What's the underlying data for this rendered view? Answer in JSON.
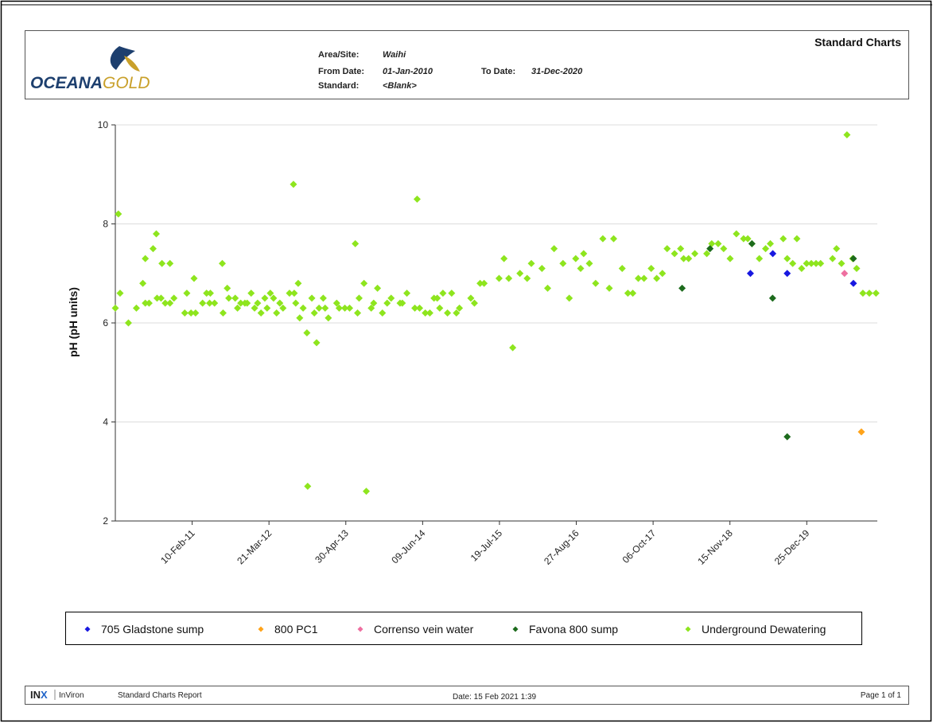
{
  "header": {
    "logo": [
      "OCEANA",
      "GOLD"
    ],
    "title": "Standard Charts",
    "fields": [
      {
        "label": "Area/Site:",
        "value": "Waihi"
      },
      {
        "label": "From Date:",
        "value": "01-Jan-2010"
      },
      {
        "label": "To Date:",
        "value": "31-Dec-2020"
      },
      {
        "label": "Standard:",
        "value": "<Blank>"
      }
    ]
  },
  "chart_data": {
    "type": "scatter",
    "y_label": "pH (pH units)",
    "xlim": [
      "2010-01-01",
      "2020-12-31"
    ],
    "xticks": [
      {
        "value": "2011-02-10",
        "label": "10-Feb-11"
      },
      {
        "value": "2012-03-21",
        "label": "21-Mar-12"
      },
      {
        "value": "2013-04-30",
        "label": "30-Apr-13"
      },
      {
        "value": "2014-06-09",
        "label": "09-Jun-14"
      },
      {
        "value": "2015-07-19",
        "label": "19-Jul-15"
      },
      {
        "value": "2016-08-27",
        "label": "27-Aug-16"
      },
      {
        "value": "2017-10-06",
        "label": "06-Oct-17"
      },
      {
        "value": "2018-11-15",
        "label": "15-Nov-18"
      },
      {
        "value": "2019-12-25",
        "label": "25-Dec-19"
      }
    ],
    "ylim": [
      2,
      10
    ],
    "yticks": [
      2,
      4,
      6,
      8,
      10
    ],
    "grid": true,
    "series": [
      {
        "name": "705 Gladstone sump",
        "color": "#1818e0",
        "x": [
          "2019-03-03",
          "2019-06-29",
          "2019-09-13",
          "2020-08-27"
        ],
        "values": [
          7.0,
          7.4,
          7.0,
          6.8
        ]
      },
      {
        "name": "800 PC1",
        "color": "#ffa31a",
        "x": [
          "2020-10-08"
        ],
        "values": [
          3.8
        ]
      },
      {
        "name": "Correnso vein water",
        "color": "#ee6fa0",
        "x": [
          "2020-07-11"
        ],
        "values": [
          7.0
        ]
      },
      {
        "name": "Favona 800 sump",
        "color": "#1d6b1d",
        "x": [
          "2018-03-08",
          "2018-08-02",
          "2019-03-11",
          "2019-06-28",
          "2019-09-13",
          "2020-08-27"
        ],
        "values": [
          6.7,
          7.5,
          7.6,
          6.5,
          3.7,
          7.3
        ]
      },
      {
        "name": "Underground Dewatering",
        "color": "#8ee51e",
        "x": [
          "2010-01-01",
          "2010-01-17",
          "2010-01-26",
          "2010-03-11",
          "2010-04-22",
          "2010-05-26",
          "2010-06-08",
          "2010-06-08",
          "2010-06-28",
          "2010-07-19",
          "2010-08-05",
          "2010-08-09",
          "2010-08-30",
          "2010-09-04",
          "2010-09-21",
          "2010-10-16",
          "2010-10-16",
          "2010-11-06",
          "2011-01-02",
          "2011-01-13",
          "2011-02-04",
          "2011-02-20",
          "2011-02-28",
          "2011-04-06",
          "2011-04-27",
          "2011-05-13",
          "2011-05-17",
          "2011-06-08",
          "2011-07-19",
          "2011-07-23",
          "2011-08-14",
          "2011-08-22",
          "2011-09-25",
          "2011-10-07",
          "2011-10-24",
          "2011-11-15",
          "2011-11-27",
          "2011-12-18",
          "2012-01-05",
          "2012-01-21",
          "2012-02-08",
          "2012-02-28",
          "2012-03-11",
          "2012-03-28",
          "2012-04-14",
          "2012-04-30",
          "2012-05-17",
          "2012-06-03",
          "2012-07-07",
          "2012-07-28",
          "2012-08-01",
          "2012-08-09",
          "2012-08-22",
          "2012-08-30",
          "2012-09-17",
          "2012-10-07",
          "2012-10-11",
          "2012-11-02",
          "2012-11-15",
          "2012-11-27",
          "2012-12-10",
          "2013-01-01",
          "2013-01-11",
          "2013-01-28",
          "2013-03-13",
          "2013-03-26",
          "2013-04-25",
          "2013-05-20",
          "2013-06-19",
          "2013-07-01",
          "2013-07-09",
          "2013-08-04",
          "2013-08-16",
          "2013-09-11",
          "2013-09-24",
          "2013-10-14",
          "2013-11-09",
          "2013-12-04",
          "2013-12-25",
          "2014-02-10",
          "2014-02-22",
          "2014-03-18",
          "2014-04-29",
          "2014-05-11",
          "2014-05-24",
          "2014-06-23",
          "2014-07-17",
          "2014-08-08",
          "2014-08-25",
          "2014-09-07",
          "2014-09-24",
          "2014-10-18",
          "2014-11-09",
          "2014-12-04",
          "2014-12-20",
          "2015-02-18",
          "2015-03-09",
          "2015-04-08",
          "2015-04-29",
          "2015-07-17",
          "2015-08-12",
          "2015-09-06",
          "2015-09-27",
          "2015-11-04",
          "2015-12-12",
          "2016-01-03",
          "2016-02-28",
          "2016-03-29",
          "2016-05-02",
          "2016-06-18",
          "2016-07-21",
          "2016-08-24",
          "2016-09-19",
          "2016-10-05",
          "2016-11-04",
          "2016-12-07",
          "2017-01-14",
          "2017-02-17",
          "2017-03-12",
          "2017-04-26",
          "2017-05-26",
          "2017-06-21",
          "2017-07-20",
          "2017-08-19",
          "2017-09-26",
          "2017-10-25",
          "2017-11-24",
          "2017-12-19",
          "2018-01-27",
          "2018-02-28",
          "2018-03-16",
          "2018-04-11",
          "2018-05-14",
          "2018-07-16",
          "2018-08-11",
          "2018-09-14",
          "2018-10-13",
          "2018-11-16",
          "2018-12-19",
          "2019-01-26",
          "2019-02-17",
          "2019-03-11",
          "2019-04-19",
          "2019-05-22",
          "2019-06-16",
          "2019-08-23",
          "2019-09-13",
          "2019-10-12",
          "2019-11-03",
          "2019-11-28",
          "2019-12-24",
          "2020-01-18",
          "2020-02-12",
          "2020-03-07",
          "2020-05-09",
          "2020-05-30",
          "2020-06-25",
          "2020-07-24",
          "2020-08-23",
          "2020-09-13",
          "2020-10-16",
          "2020-11-19",
          "2020-12-24"
        ],
        "values": [
          6.3,
          8.2,
          6.6,
          6.0,
          6.3,
          6.8,
          7.3,
          6.4,
          6.4,
          7.5,
          7.8,
          6.5,
          6.5,
          7.2,
          6.4,
          7.2,
          6.4,
          6.5,
          6.2,
          6.6,
          6.2,
          6.9,
          6.2,
          6.4,
          6.6,
          6.4,
          6.6,
          6.4,
          7.2,
          6.2,
          6.7,
          6.5,
          6.5,
          6.3,
          6.4,
          6.4,
          6.4,
          6.6,
          6.3,
          6.4,
          6.2,
          6.5,
          6.3,
          6.6,
          6.5,
          6.2,
          6.4,
          6.3,
          6.6,
          8.8,
          6.6,
          6.4,
          6.8,
          6.1,
          6.3,
          5.8,
          2.7,
          6.5,
          6.2,
          5.6,
          6.3,
          6.5,
          6.3,
          6.1,
          6.4,
          6.3,
          6.3,
          6.3,
          7.6,
          6.2,
          6.5,
          6.8,
          2.6,
          6.3,
          6.4,
          6.7,
          6.2,
          6.4,
          6.5,
          6.4,
          6.4,
          6.6,
          6.3,
          8.5,
          6.3,
          6.2,
          6.2,
          6.5,
          6.5,
          6.3,
          6.6,
          6.2,
          6.6,
          6.2,
          6.3,
          6.5,
          6.4,
          6.8,
          6.8,
          6.9,
          7.3,
          6.9,
          5.5,
          7.0,
          6.9,
          7.2,
          7.1,
          6.7,
          7.5,
          7.2,
          6.5,
          7.3,
          7.1,
          7.4,
          7.2,
          6.8,
          7.7,
          6.7,
          7.7,
          7.1,
          6.6,
          6.6,
          6.9,
          6.9,
          7.1,
          6.9,
          7.0,
          7.5,
          7.4,
          7.5,
          7.3,
          7.3,
          7.4,
          7.4,
          7.6,
          7.6,
          7.5,
          7.3,
          7.8,
          7.7,
          7.7,
          7.6,
          7.3,
          7.5,
          7.6,
          7.7,
          7.3,
          7.2,
          7.7,
          7.1,
          7.2,
          7.2,
          7.2,
          7.2,
          7.3,
          7.5,
          7.2,
          9.8,
          7.3,
          7.1,
          6.6,
          6.6,
          6.6
        ]
      }
    ]
  },
  "footer": {
    "brand": [
      "IN",
      "X"
    ],
    "product": "InViron",
    "report": "Standard Charts Report",
    "date": "Date: 15 Feb 2021 1:39",
    "page": "Page 1 of 1"
  }
}
